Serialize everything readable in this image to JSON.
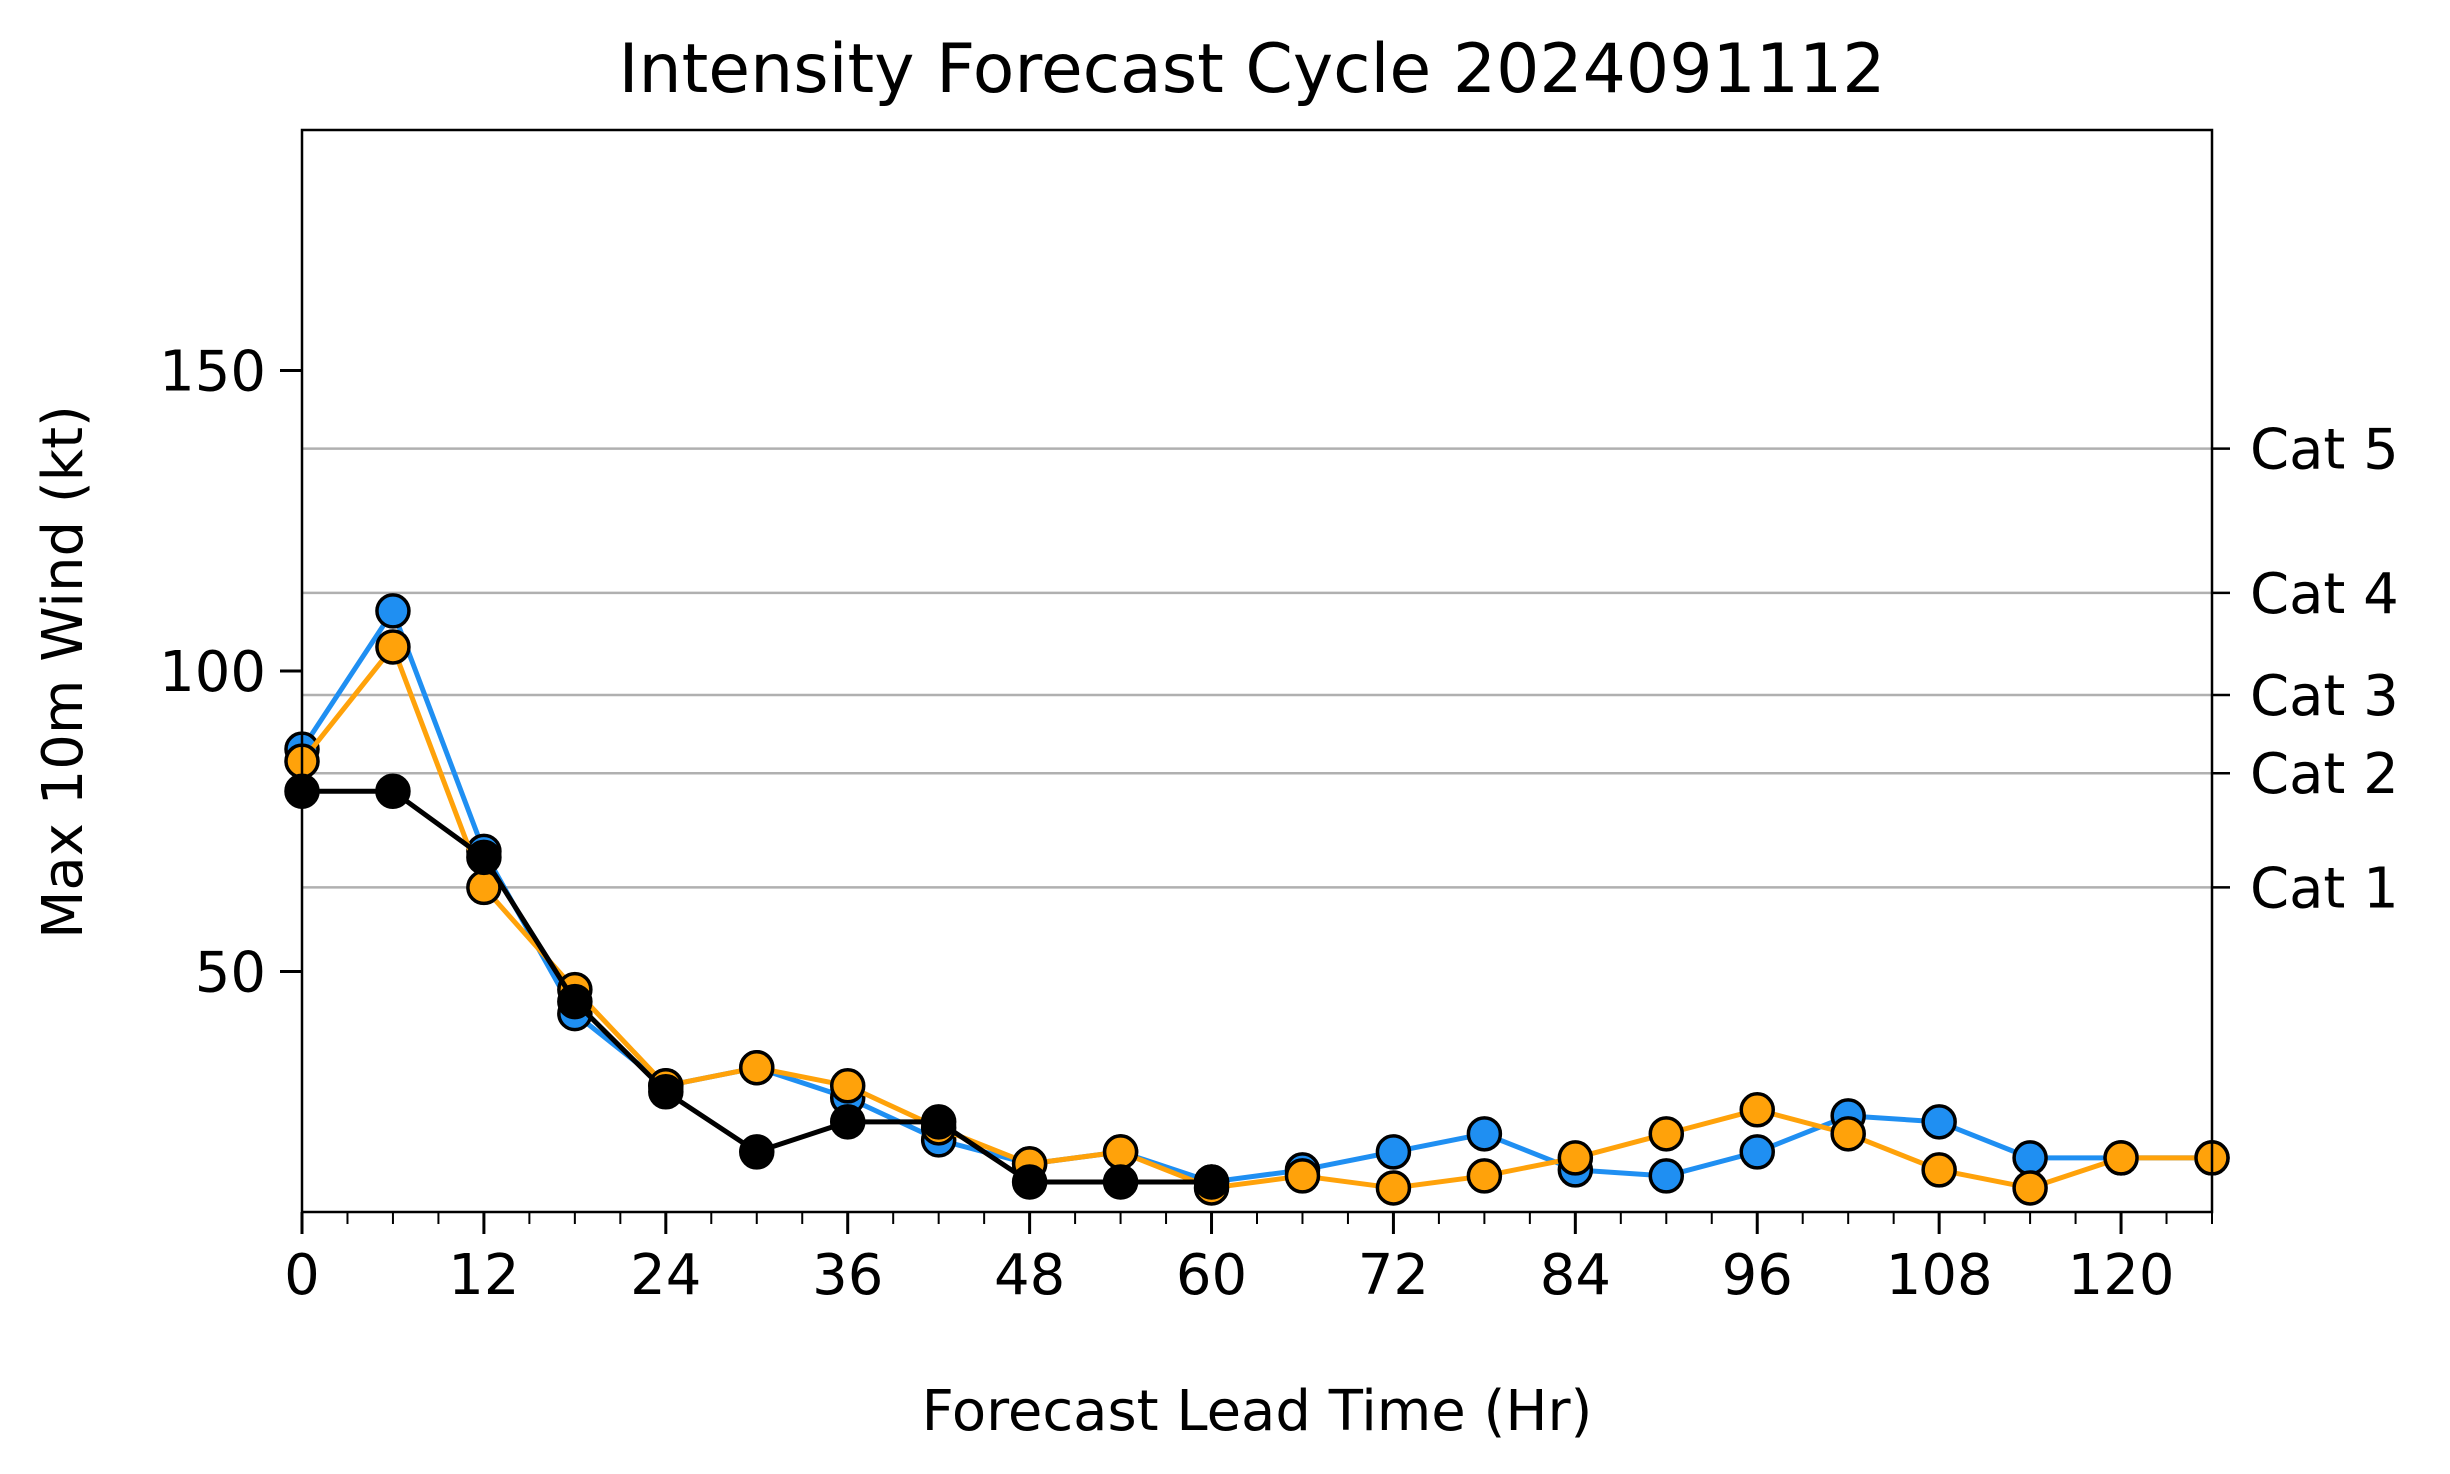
{
  "chart_data": {
    "type": "line",
    "title": "Intensity Forecast Cycle 2024091112",
    "xlabel": "Forecast Lead Time (Hr)",
    "ylabel": "Max 10m Wind (kt)",
    "xlim": [
      0,
      126
    ],
    "ylim": [
      10,
      190
    ],
    "x_ticks": [
      0,
      12,
      24,
      36,
      48,
      60,
      72,
      84,
      96,
      108,
      120
    ],
    "x_tick_labels": [
      "0",
      "12",
      "24",
      "36",
      "48",
      "60",
      "72",
      "84",
      "96",
      "108",
      "120"
    ],
    "x_minor_step": 3,
    "y_ticks": [
      50,
      100,
      150
    ],
    "y_tick_labels": [
      "50",
      "100",
      "150"
    ],
    "category_lines": [
      {
        "label": "Cat 1",
        "value": 64
      },
      {
        "label": "Cat 2",
        "value": 83
      },
      {
        "label": "Cat 3",
        "value": 96
      },
      {
        "label": "Cat 4",
        "value": 113
      },
      {
        "label": "Cat 5",
        "value": 137
      }
    ],
    "grid": "horizontal category lines only",
    "legend": "none",
    "series": [
      {
        "color": "#1f8ff2",
        "x": [
          0,
          6,
          12,
          18,
          24,
          30,
          36,
          42,
          48,
          54,
          60,
          66,
          72,
          78,
          84,
          90,
          96,
          102,
          108,
          114,
          120,
          126
        ],
        "values": [
          87,
          110,
          70,
          43,
          31,
          34,
          29,
          22,
          18,
          20,
          15,
          17,
          20,
          23,
          17,
          16,
          20,
          26,
          25,
          19,
          19,
          19
        ]
      },
      {
        "color": "#ffa20a",
        "x": [
          0,
          6,
          12,
          18,
          24,
          30,
          36,
          42,
          48,
          54,
          60,
          66,
          72,
          78,
          84,
          90,
          96,
          102,
          108,
          114,
          120,
          126
        ],
        "values": [
          85,
          104,
          64,
          47,
          31,
          34,
          31,
          24,
          18,
          20,
          14,
          16,
          14,
          16,
          19,
          23,
          27,
          23,
          17,
          14,
          19,
          19
        ]
      },
      {
        "color": "#000000",
        "x": [
          0,
          6,
          12,
          18,
          24,
          30,
          36,
          42,
          48,
          54,
          60
        ],
        "values": [
          80,
          80,
          69,
          45,
          30,
          20,
          25,
          25,
          15,
          15,
          15
        ]
      }
    ]
  }
}
